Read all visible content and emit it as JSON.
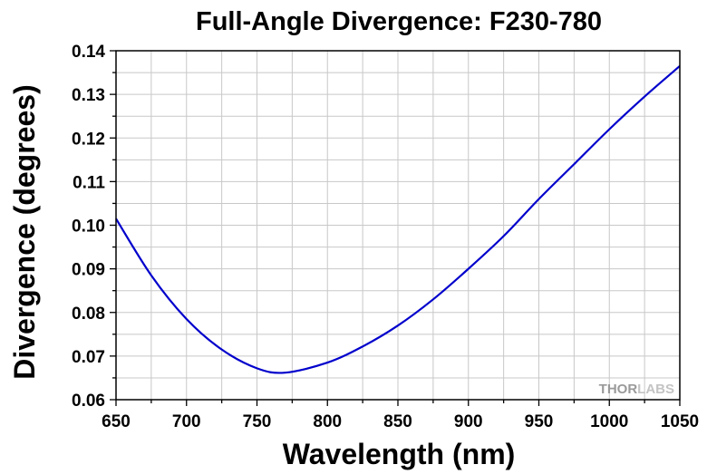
{
  "chart_data": {
    "type": "line",
    "title": "Full-Angle Divergence: F230-780",
    "xlabel": "Wavelength (nm)",
    "ylabel": "Divergence (degrees)",
    "xlim": [
      650,
      1050
    ],
    "ylim": [
      0.06,
      0.14
    ],
    "xticks": [
      650,
      700,
      750,
      800,
      850,
      900,
      950,
      1000,
      1050
    ],
    "xtick_labels": [
      "650",
      "700",
      "750",
      "800",
      "850",
      "900",
      "950",
      "1000",
      "1050"
    ],
    "yticks": [
      0.06,
      0.07,
      0.08,
      0.09,
      0.1,
      0.11,
      0.12,
      0.13,
      0.14
    ],
    "ytick_labels": [
      "0.06",
      "0.07",
      "0.08",
      "0.09",
      "0.10",
      "0.11",
      "0.12",
      "0.13",
      "0.14"
    ],
    "grid": true,
    "series": [
      {
        "color": "#0000cc",
        "x": [
          650,
          675,
          700,
          725,
          750,
          770,
          800,
          825,
          850,
          875,
          900,
          925,
          950,
          975,
          1000,
          1025,
          1050
        ],
        "y": [
          0.1015,
          0.0885,
          0.0785,
          0.0715,
          0.0672,
          0.0662,
          0.0685,
          0.0722,
          0.077,
          0.083,
          0.09,
          0.0975,
          0.106,
          0.114,
          0.122,
          0.1295,
          0.1365
        ]
      }
    ]
  },
  "watermark": {
    "text_dark": "THOR",
    "text_light": "LABS"
  }
}
